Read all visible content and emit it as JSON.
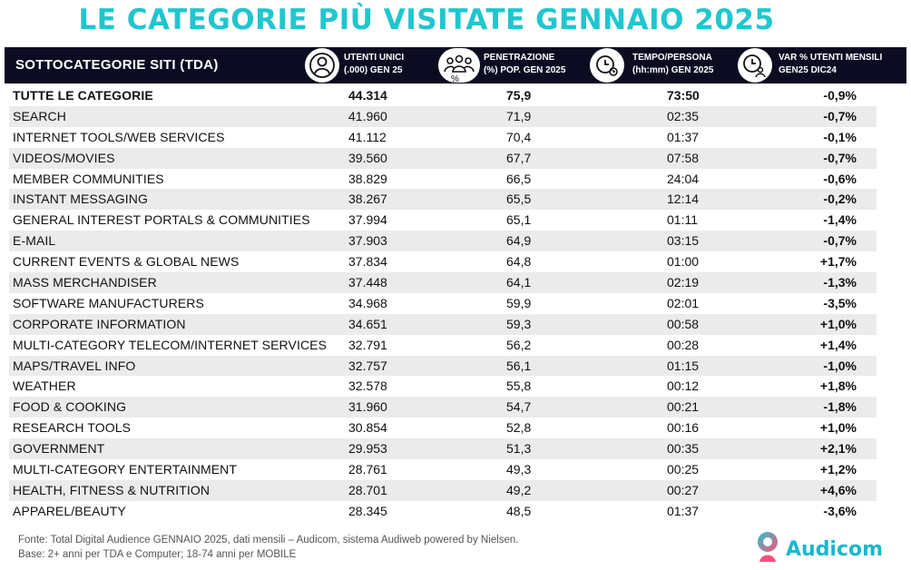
{
  "title": "LE CATEGORIE PIÙ VISITATE GENNAIO 2025",
  "header": {
    "category_label": "SOTTOCATEGORIE SITI  (TDA)",
    "users_label": "UTENTI UNICI\n(.000) GEN 25",
    "penetration_label": "PENETRAZIONE\n(%) POP. GEN 2025",
    "penetration_icon_caption": "%",
    "time_label": "TEMPO/PERSONA\n(hh:mm) GEN 2025",
    "var_label": "VAR % UTENTI MENSILI\nGEN25 DIC24",
    "icons": [
      "user-icon",
      "group-icon",
      "clock-icon",
      "user-clock-icon"
    ]
  },
  "rows": [
    {
      "name": "TUTTE LE CATEGORIE",
      "users": "44.314",
      "penetration": "75,9",
      "time": "73:50",
      "var": "-0,9%"
    },
    {
      "name": "SEARCH",
      "users": "41.960",
      "penetration": "71,9",
      "time": "02:35",
      "var": "-0,7%"
    },
    {
      "name": "INTERNET TOOLS/WEB SERVICES",
      "users": "41.112",
      "penetration": "70,4",
      "time": "01:37",
      "var": "-0,1%"
    },
    {
      "name": "VIDEOS/MOVIES",
      "users": "39.560",
      "penetration": "67,7",
      "time": "07:58",
      "var": "-0,7%"
    },
    {
      "name": "MEMBER COMMUNITIES",
      "users": "38.829",
      "penetration": "66,5",
      "time": "24:04",
      "var": "-0,6%"
    },
    {
      "name": "INSTANT MESSAGING",
      "users": "38.267",
      "penetration": "65,5",
      "time": "12:14",
      "var": "-0,2%"
    },
    {
      "name": "GENERAL INTEREST PORTALS & COMMUNITIES",
      "users": "37.994",
      "penetration": "65,1",
      "time": "01:11",
      "var": "-1,4%"
    },
    {
      "name": "E-MAIL",
      "users": "37.903",
      "penetration": "64,9",
      "time": "03:15",
      "var": "-0,7%"
    },
    {
      "name": "CURRENT EVENTS & GLOBAL NEWS",
      "users": "37.834",
      "penetration": "64,8",
      "time": "01:00",
      "var": "+1,7%"
    },
    {
      "name": "MASS MERCHANDISER",
      "users": "37.448",
      "penetration": "64,1",
      "time": "02:19",
      "var": "-1,3%"
    },
    {
      "name": "SOFTWARE MANUFACTURERS",
      "users": "34.968",
      "penetration": "59,9",
      "time": "02:01",
      "var": "-3,5%"
    },
    {
      "name": "CORPORATE INFORMATION",
      "users": "34.651",
      "penetration": "59,3",
      "time": "00:58",
      "var": "+1,0%"
    },
    {
      "name": "MULTI-CATEGORY TELECOM/INTERNET SERVICES",
      "users": "32.791",
      "penetration": "56,2",
      "time": "00:28",
      "var": "+1,4%"
    },
    {
      "name": "MAPS/TRAVEL INFO",
      "users": "32.757",
      "penetration": "56,1",
      "time": "01:15",
      "var": "-1,0%"
    },
    {
      "name": "WEATHER",
      "users": "32.578",
      "penetration": "55,8",
      "time": "00:12",
      "var": "+1,8%"
    },
    {
      "name": "FOOD & COOKING",
      "users": "31.960",
      "penetration": "54,7",
      "time": "00:21",
      "var": "-1,8%"
    },
    {
      "name": "RESEARCH TOOLS",
      "users": "30.854",
      "penetration": "52,8",
      "time": "00:16",
      "var": "+1,0%"
    },
    {
      "name": "GOVERNMENT",
      "users": "29.953",
      "penetration": "51,3",
      "time": "00:35",
      "var": "+2,1%"
    },
    {
      "name": "MULTI-CATEGORY ENTERTAINMENT",
      "users": "28.761",
      "penetration": "49,3",
      "time": "00:25",
      "var": "+1,2%"
    },
    {
      "name": "HEALTH, FITNESS & NUTRITION",
      "users": "28.701",
      "penetration": "49,2",
      "time": "00:27",
      "var": "+4,6%"
    },
    {
      "name": "APPAREL/BEAUTY",
      "users": "28.345",
      "penetration": "48,5",
      "time": "01:37",
      "var": "-3,6%"
    }
  ],
  "footnote": {
    "line1": "Fonte: Total Digital Audience GENNAIO 2025, dati mensili – Audicom, sistema Audiweb powered by Nielsen.",
    "line2": "Base: 2+ anni per TDA e Computer; 18-74 anni per MOBILE"
  },
  "logo": {
    "text": "Audicom",
    "icon": "audicom-logo-mark"
  },
  "colors": {
    "title": "#20c6cf",
    "header_bg": "#0b0c22",
    "row_alt": "#ebebeb",
    "logo": "#18b7cf"
  }
}
